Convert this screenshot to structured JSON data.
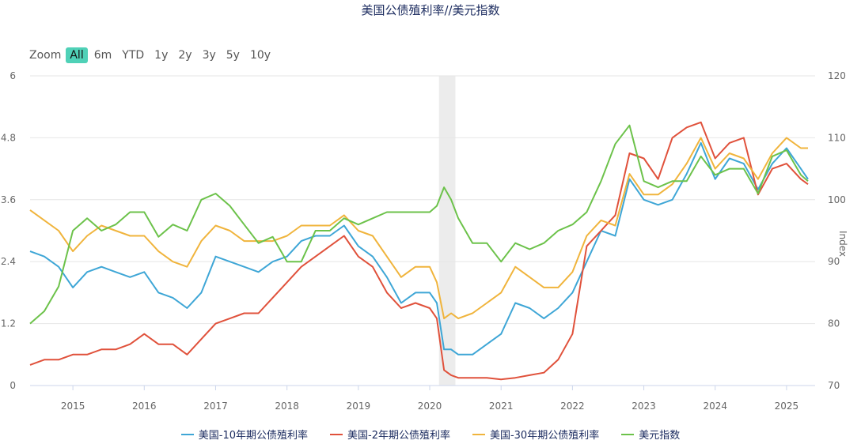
{
  "title": "美国公债殖利率//美元指数",
  "zoom": {
    "label": "Zoom",
    "buttons": [
      "All",
      "6m",
      "YTD",
      "1y",
      "2y",
      "3y",
      "5y",
      "10y"
    ],
    "active": "All"
  },
  "chart_data": {
    "type": "line",
    "left_axis": {
      "ticks": [
        "0",
        "1.2",
        "2.4",
        "3.6",
        "4.8",
        "6"
      ],
      "ylim": [
        0,
        6
      ]
    },
    "right_axis": {
      "label": "Index",
      "ticks": [
        "70",
        "80",
        "90",
        "100",
        "110",
        "120"
      ],
      "ylim": [
        70,
        120
      ]
    },
    "xlabels": [
      "2015",
      "2016",
      "2017",
      "2018",
      "2019",
      "2020",
      "2021",
      "2022",
      "2023",
      "2024",
      "2025"
    ],
    "xlim": [
      2014.4,
      2025.4
    ],
    "shaded_band": [
      2020.13,
      2020.36
    ],
    "x": [
      2014.4,
      2014.6,
      2014.8,
      2015.0,
      2015.2,
      2015.4,
      2015.6,
      2015.8,
      2016.0,
      2016.2,
      2016.4,
      2016.6,
      2016.8,
      2017.0,
      2017.2,
      2017.4,
      2017.6,
      2017.8,
      2018.0,
      2018.2,
      2018.4,
      2018.6,
      2018.8,
      2019.0,
      2019.2,
      2019.4,
      2019.6,
      2019.8,
      2020.0,
      2020.1,
      2020.2,
      2020.3,
      2020.4,
      2020.6,
      2020.8,
      2021.0,
      2021.2,
      2021.4,
      2021.6,
      2021.8,
      2022.0,
      2022.2,
      2022.4,
      2022.6,
      2022.8,
      2023.0,
      2023.2,
      2023.4,
      2023.6,
      2023.8,
      2024.0,
      2024.2,
      2024.4,
      2024.6,
      2024.8,
      2025.0,
      2025.2,
      2025.3
    ],
    "series": [
      {
        "name": "美国-10年期公债殖利率",
        "color": "#3ea6d6",
        "axis": "left",
        "values": [
          2.6,
          2.5,
          2.3,
          1.9,
          2.2,
          2.3,
          2.2,
          2.1,
          2.2,
          1.8,
          1.7,
          1.5,
          1.8,
          2.5,
          2.4,
          2.3,
          2.2,
          2.4,
          2.5,
          2.8,
          2.9,
          2.9,
          3.1,
          2.7,
          2.5,
          2.1,
          1.6,
          1.8,
          1.8,
          1.6,
          0.7,
          0.7,
          0.6,
          0.6,
          0.8,
          1.0,
          1.6,
          1.5,
          1.3,
          1.5,
          1.8,
          2.4,
          3.0,
          2.9,
          4.0,
          3.6,
          3.5,
          3.6,
          4.1,
          4.7,
          4.0,
          4.4,
          4.3,
          3.8,
          4.3,
          4.6,
          4.2,
          4.0
        ]
      },
      {
        "name": "美国-2年期公债殖利率",
        "color": "#e0513b",
        "axis": "left",
        "values": [
          0.4,
          0.5,
          0.5,
          0.6,
          0.6,
          0.7,
          0.7,
          0.8,
          1.0,
          0.8,
          0.8,
          0.6,
          0.9,
          1.2,
          1.3,
          1.4,
          1.4,
          1.7,
          2.0,
          2.3,
          2.5,
          2.7,
          2.9,
          2.5,
          2.3,
          1.8,
          1.5,
          1.6,
          1.5,
          1.3,
          0.3,
          0.2,
          0.15,
          0.15,
          0.15,
          0.12,
          0.15,
          0.2,
          0.25,
          0.5,
          1.0,
          2.7,
          3.0,
          3.3,
          4.5,
          4.4,
          4.0,
          4.8,
          5.0,
          5.1,
          4.4,
          4.7,
          4.8,
          3.7,
          4.2,
          4.3,
          4.0,
          3.9
        ]
      },
      {
        "name": "美国-30年期公债殖利率",
        "color": "#f0b43c",
        "axis": "left",
        "values": [
          3.4,
          3.2,
          3.0,
          2.6,
          2.9,
          3.1,
          3.0,
          2.9,
          2.9,
          2.6,
          2.4,
          2.3,
          2.8,
          3.1,
          3.0,
          2.8,
          2.8,
          2.8,
          2.9,
          3.1,
          3.1,
          3.1,
          3.3,
          3.0,
          2.9,
          2.5,
          2.1,
          2.3,
          2.3,
          2.0,
          1.3,
          1.4,
          1.3,
          1.4,
          1.6,
          1.8,
          2.3,
          2.1,
          1.9,
          1.9,
          2.2,
          2.9,
          3.2,
          3.1,
          4.1,
          3.7,
          3.7,
          3.9,
          4.3,
          4.8,
          4.2,
          4.5,
          4.4,
          4.0,
          4.5,
          4.8,
          4.6,
          4.6
        ]
      },
      {
        "name": "美元指数",
        "color": "#6cc24a",
        "axis": "right",
        "values": [
          80,
          82,
          86,
          95,
          97,
          95,
          96,
          98,
          98,
          94,
          96,
          95,
          100,
          101,
          99,
          96,
          93,
          94,
          90,
          90,
          95,
          95,
          97,
          96,
          97,
          98,
          98,
          98,
          98,
          99,
          102,
          100,
          97,
          93,
          93,
          90,
          93,
          92,
          93,
          95,
          96,
          98,
          103,
          109,
          112,
          103,
          102,
          103,
          103,
          107,
          104,
          105,
          105,
          101,
          107,
          108,
          104,
          103
        ]
      }
    ]
  }
}
